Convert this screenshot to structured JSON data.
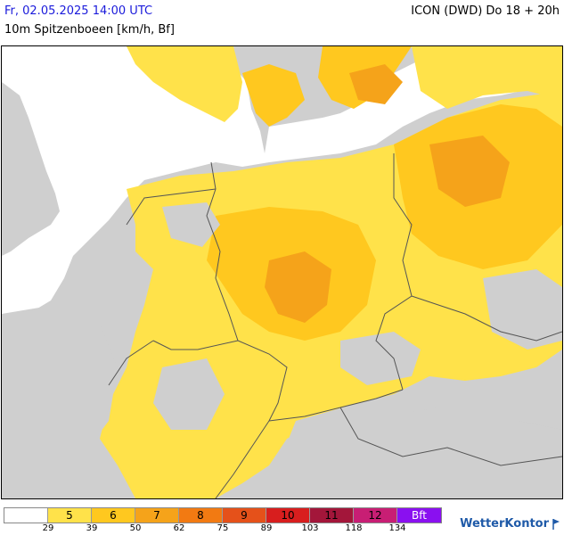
{
  "header": {
    "datetime": "Fr, 02.05.2025 14:00 UTC",
    "parameter": "10m Spitzenboeen [km/h, Bf]",
    "model_run": "ICON (DWD) Do 18 + 20h"
  },
  "legend": {
    "classes": [
      {
        "label": "",
        "color": "#ffffff"
      },
      {
        "label": "5",
        "color": "#ffe24a"
      },
      {
        "label": "6",
        "color": "#ffc81f"
      },
      {
        "label": "7",
        "color": "#f5a31a"
      },
      {
        "label": "8",
        "color": "#f27a12"
      },
      {
        "label": "9",
        "color": "#e5511a"
      },
      {
        "label": "10",
        "color": "#d81e1e"
      },
      {
        "label": "11",
        "color": "#a3163a"
      },
      {
        "label": "12",
        "color": "#c81e74"
      },
      {
        "label": "Bft",
        "color": "#8a10f0"
      }
    ],
    "thresholds": [
      "29",
      "39",
      "50",
      "62",
      "75",
      "89",
      "103",
      "118",
      "134"
    ]
  },
  "brand": {
    "name": "WetterKontor"
  },
  "map": {
    "sea_color": "#ffffff",
    "no_data_color": "#cfcfcf",
    "border_color": "#555555"
  }
}
